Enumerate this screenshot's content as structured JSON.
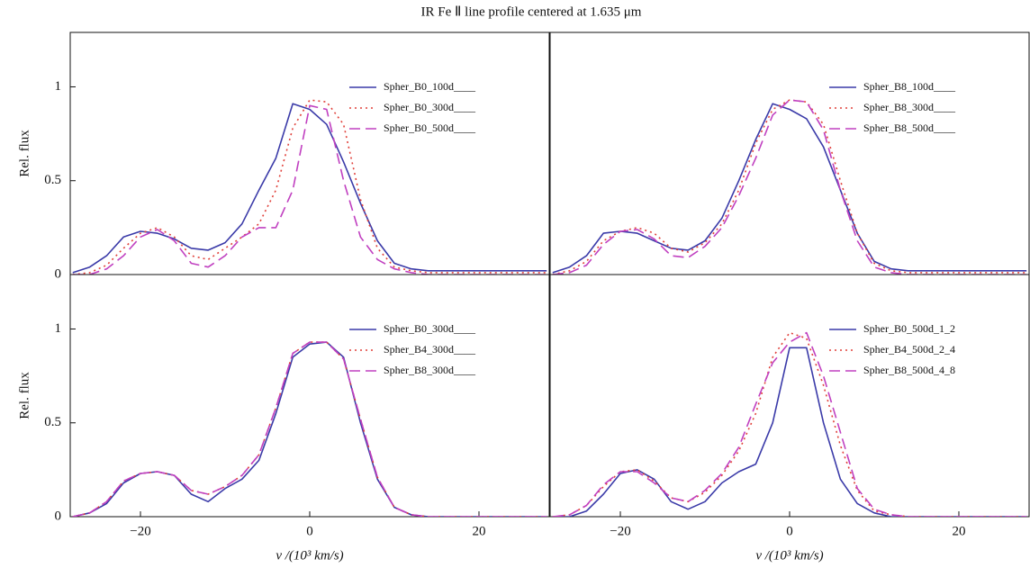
{
  "title": "IR Fe Ⅱ  line profile centered at 1.635 μm",
  "chart_data": [
    {
      "type": "line",
      "y_label": "Rel. flux",
      "legend": "upper right",
      "x": [
        -28,
        -26,
        -24,
        -22,
        -20,
        -18,
        -16,
        -14,
        -12,
        -10,
        -8,
        -6,
        -4,
        -2,
        0,
        2,
        4,
        6,
        8,
        10,
        12,
        14,
        16,
        18,
        20,
        22,
        24,
        26,
        28
      ],
      "xlim": [
        -28.3,
        28.3
      ],
      "ylim": [
        0,
        1.29
      ],
      "yticks": [
        0,
        0.5,
        1
      ],
      "series": [
        {
          "name": "Spher_B0_100d____",
          "color": "#3a3aa8",
          "dash": "solid",
          "values": [
            0.01,
            0.04,
            0.1,
            0.2,
            0.23,
            0.22,
            0.19,
            0.14,
            0.13,
            0.17,
            0.27,
            0.45,
            0.62,
            0.91,
            0.88,
            0.8,
            0.6,
            0.38,
            0.18,
            0.06,
            0.03,
            0.02,
            0.02,
            0.02,
            0.02,
            0.02,
            0.02,
            0.02,
            0.02
          ]
        },
        {
          "name": "Spher_B0_300d____",
          "color": "#e0403a",
          "dash": "dotted",
          "values": [
            0,
            0.01,
            0.05,
            0.14,
            0.22,
            0.25,
            0.2,
            0.1,
            0.08,
            0.14,
            0.2,
            0.27,
            0.45,
            0.78,
            0.93,
            0.92,
            0.8,
            0.4,
            0.14,
            0.04,
            0.02,
            0.01,
            0.01,
            0.01,
            0.01,
            0.01,
            0.01,
            0.01,
            0.01
          ]
        },
        {
          "name": "Spher_B0_500d____",
          "color": "#c040c0",
          "dash": "dashed",
          "values": [
            0,
            0,
            0.03,
            0.1,
            0.2,
            0.24,
            0.18,
            0.06,
            0.04,
            0.1,
            0.2,
            0.25,
            0.25,
            0.45,
            0.9,
            0.88,
            0.5,
            0.2,
            0.08,
            0.03,
            0.01,
            0,
            0,
            0,
            0,
            0,
            0,
            0,
            0
          ]
        }
      ]
    },
    {
      "type": "line",
      "legend": "upper right",
      "x": [
        -28,
        -26,
        -24,
        -22,
        -20,
        -18,
        -16,
        -14,
        -12,
        -10,
        -8,
        -6,
        -4,
        -2,
        0,
        2,
        4,
        6,
        8,
        10,
        12,
        14,
        16,
        18,
        20,
        22,
        24,
        26,
        28
      ],
      "xlim": [
        -28.3,
        28.3
      ],
      "ylim": [
        0,
        1.29
      ],
      "series": [
        {
          "name": "Spher_B8_100d____",
          "color": "#3a3aa8",
          "dash": "solid",
          "values": [
            0.01,
            0.04,
            0.1,
            0.22,
            0.23,
            0.22,
            0.18,
            0.14,
            0.13,
            0.18,
            0.3,
            0.5,
            0.72,
            0.91,
            0.88,
            0.83,
            0.68,
            0.45,
            0.22,
            0.07,
            0.03,
            0.02,
            0.02,
            0.02,
            0.02,
            0.02,
            0.02,
            0.02,
            0.02
          ]
        },
        {
          "name": "Spher_B8_300d____",
          "color": "#e0403a",
          "dash": "dotted",
          "values": [
            0,
            0.02,
            0.07,
            0.18,
            0.23,
            0.25,
            0.22,
            0.14,
            0.12,
            0.17,
            0.27,
            0.45,
            0.7,
            0.88,
            0.93,
            0.92,
            0.8,
            0.5,
            0.22,
            0.06,
            0.02,
            0.01,
            0.01,
            0.01,
            0.01,
            0.01,
            0.01,
            0.01,
            0.01
          ]
        },
        {
          "name": "Spher_B8_500d____",
          "color": "#c040c0",
          "dash": "dashed",
          "values": [
            0,
            0.01,
            0.05,
            0.16,
            0.23,
            0.24,
            0.19,
            0.1,
            0.09,
            0.15,
            0.25,
            0.42,
            0.62,
            0.85,
            0.93,
            0.92,
            0.77,
            0.45,
            0.18,
            0.04,
            0.01,
            0,
            0,
            0,
            0,
            0,
            0,
            0,
            0
          ]
        }
      ]
    },
    {
      "type": "line",
      "y_label": "Rel. flux",
      "x_label": "v /(10³ km/s)",
      "legend": "upper right",
      "x": [
        -28,
        -26,
        -24,
        -22,
        -20,
        -18,
        -16,
        -14,
        -12,
        -10,
        -8,
        -6,
        -4,
        -2,
        0,
        2,
        4,
        6,
        8,
        10,
        12,
        14,
        16,
        18,
        20,
        22,
        24,
        26,
        28
      ],
      "xlim": [
        -28.3,
        28.3
      ],
      "ylim": [
        0,
        1.29
      ],
      "yticks": [
        0,
        0.5,
        1
      ],
      "xticks": [
        {
          "value": -20,
          "label": "−20"
        },
        0,
        20
      ],
      "series": [
        {
          "name": "Spher_B0_300d____",
          "color": "#3a3aa8",
          "dash": "solid",
          "values": [
            0,
            0.02,
            0.07,
            0.18,
            0.23,
            0.24,
            0.22,
            0.12,
            0.08,
            0.15,
            0.2,
            0.3,
            0.55,
            0.85,
            0.92,
            0.93,
            0.85,
            0.5,
            0.2,
            0.05,
            0.01,
            0,
            0,
            0,
            0,
            0,
            0,
            0,
            0
          ]
        },
        {
          "name": "Spher_B4_300d____",
          "color": "#e0403a",
          "dash": "dotted",
          "values": [
            0,
            0.02,
            0.08,
            0.19,
            0.23,
            0.24,
            0.22,
            0.14,
            0.12,
            0.16,
            0.22,
            0.33,
            0.58,
            0.87,
            0.93,
            0.93,
            0.84,
            0.52,
            0.21,
            0.05,
            0.01,
            0,
            0,
            0,
            0,
            0,
            0,
            0,
            0
          ]
        },
        {
          "name": "Spher_B8_300d____",
          "color": "#c040c0",
          "dash": "dashed",
          "values": [
            0,
            0.02,
            0.08,
            0.19,
            0.23,
            0.24,
            0.22,
            0.14,
            0.12,
            0.16,
            0.22,
            0.33,
            0.58,
            0.87,
            0.93,
            0.93,
            0.84,
            0.52,
            0.21,
            0.05,
            0.01,
            0,
            0,
            0,
            0,
            0,
            0,
            0,
            0
          ]
        }
      ]
    },
    {
      "type": "line",
      "x_label": "v /(10³ km/s)",
      "legend": "upper right",
      "x": [
        -28,
        -26,
        -24,
        -22,
        -20,
        -18,
        -16,
        -14,
        -12,
        -10,
        -8,
        -6,
        -4,
        -2,
        0,
        2,
        4,
        6,
        8,
        10,
        12,
        14,
        16,
        18,
        20,
        22,
        24,
        26,
        28
      ],
      "xlim": [
        -28.3,
        28.3
      ],
      "ylim": [
        0,
        1.29
      ],
      "xticks": [
        {
          "value": -20,
          "label": "−20"
        },
        0,
        20
      ],
      "series": [
        {
          "name": "Spher_B0_500d_1_2",
          "color": "#3a3aa8",
          "dash": "solid",
          "values": [
            0,
            0,
            0.03,
            0.12,
            0.23,
            0.25,
            0.2,
            0.08,
            0.04,
            0.08,
            0.18,
            0.24,
            0.28,
            0.5,
            0.9,
            0.9,
            0.5,
            0.2,
            0.07,
            0.02,
            0,
            0,
            0,
            0,
            0,
            0,
            0,
            0,
            0
          ]
        },
        {
          "name": "Spher_B4_500d_2_4",
          "color": "#e0403a",
          "dash": "dotted",
          "values": [
            0,
            0.01,
            0.06,
            0.16,
            0.24,
            0.25,
            0.19,
            0.1,
            0.08,
            0.13,
            0.22,
            0.35,
            0.55,
            0.85,
            0.98,
            0.95,
            0.7,
            0.38,
            0.14,
            0.03,
            0.01,
            0,
            0,
            0,
            0,
            0,
            0,
            0,
            0
          ]
        },
        {
          "name": "Spher_B8_500d_4_8",
          "color": "#c040c0",
          "dash": "dashed",
          "values": [
            0,
            0.01,
            0.06,
            0.17,
            0.24,
            0.24,
            0.18,
            0.1,
            0.08,
            0.14,
            0.23,
            0.37,
            0.6,
            0.82,
            0.93,
            0.98,
            0.75,
            0.45,
            0.15,
            0.04,
            0.01,
            0,
            0,
            0,
            0,
            0,
            0,
            0,
            0
          ]
        }
      ]
    }
  ]
}
